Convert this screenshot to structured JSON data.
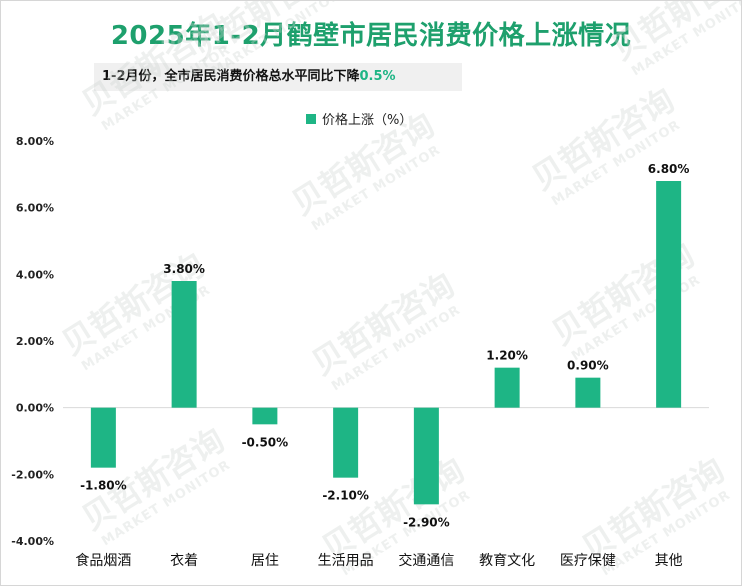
{
  "colors": {
    "accent": "#1eb585",
    "title": "#1ea06d",
    "highlight": "#1eb585",
    "text": "#111111",
    "axis": "#d9d9d9"
  },
  "title": "2025年1-2月鹤壁市居民消费价格上涨情况",
  "subtitle": {
    "prefix": "1-2月份，全市居民消费价格总水平同比下降",
    "value": "0.5%"
  },
  "chart_data": {
    "type": "bar",
    "categories": [
      "食品烟酒",
      "衣着",
      "居住",
      "生活用品",
      "交通通信",
      "教育文化",
      "医疗保健",
      "其他"
    ],
    "series": [
      {
        "name": "价格上涨（%）",
        "values": [
          -1.8,
          3.8,
          -0.5,
          -2.1,
          -2.9,
          1.2,
          0.9,
          6.8
        ]
      }
    ],
    "data_labels": [
      "-1.80%",
      "3.80%",
      "-0.50%",
      "-2.10%",
      "-2.90%",
      "1.20%",
      "0.90%",
      "6.80%"
    ],
    "yticks": [
      8,
      6,
      4,
      2,
      0,
      -2,
      -4
    ],
    "ytick_labels": [
      "8.00%",
      "6.00%",
      "4.00%",
      "2.00%",
      "0.00%",
      "-2.00%",
      "-4.00%"
    ],
    "ylim": [
      -4,
      8
    ],
    "legend_position": "top-center",
    "grid": false
  },
  "watermark": {
    "cn": "贝哲斯咨询",
    "en": "MARKET MONITOR"
  }
}
